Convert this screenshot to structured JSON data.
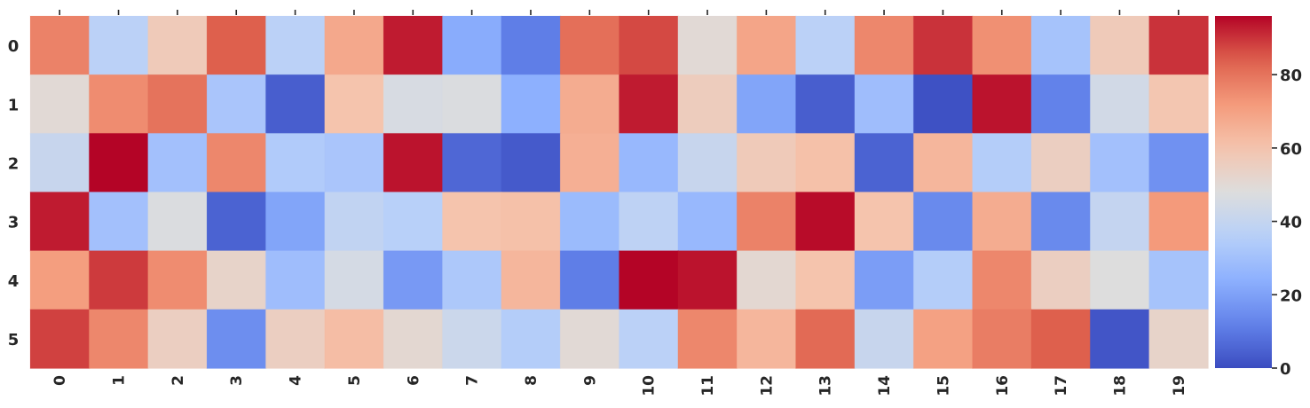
{
  "chart_data": {
    "type": "heatmap",
    "title": "",
    "xlabel": "",
    "ylabel": "",
    "colormap": "coolwarm",
    "x_categories": [
      "0",
      "1",
      "2",
      "3",
      "4",
      "5",
      "6",
      "7",
      "8",
      "9",
      "10",
      "11",
      "12",
      "13",
      "14",
      "15",
      "16",
      "17",
      "18",
      "19"
    ],
    "y_categories": [
      "0",
      "1",
      "2",
      "3",
      "4",
      "5"
    ],
    "value_range": [
      0,
      96
    ],
    "colorbar": {
      "ticks": [
        0,
        20,
        40,
        60,
        80
      ],
      "tick_labels": [
        "0",
        "20",
        "40",
        "60",
        "80"
      ]
    },
    "values": [
      [
        77,
        37,
        57,
        84,
        37,
        68,
        93,
        23,
        11,
        81,
        87,
        50,
        69,
        37,
        76,
        90,
        74,
        31,
        57,
        90
      ],
      [
        50,
        75,
        80,
        32,
        4,
        60,
        46,
        47,
        24,
        67,
        93,
        56,
        21,
        4,
        29,
        1,
        94,
        12,
        44,
        59
      ],
      [
        41,
        96,
        30,
        76,
        34,
        32,
        94,
        6,
        3,
        66,
        27,
        41,
        57,
        61,
        5,
        64,
        35,
        55,
        30,
        16
      ],
      [
        93,
        30,
        47,
        5,
        21,
        39,
        36,
        60,
        61,
        28,
        38,
        27,
        77,
        95,
        60,
        14,
        67,
        14,
        40,
        72
      ],
      [
        71,
        89,
        75,
        53,
        29,
        45,
        18,
        33,
        64,
        11,
        97,
        94,
        51,
        60,
        19,
        35,
        76,
        55,
        48,
        31
      ],
      [
        88,
        76,
        55,
        15,
        55,
        62,
        51,
        42,
        35,
        50,
        37,
        76,
        64,
        82,
        41,
        70,
        78,
        84,
        2,
        53
      ]
    ]
  }
}
